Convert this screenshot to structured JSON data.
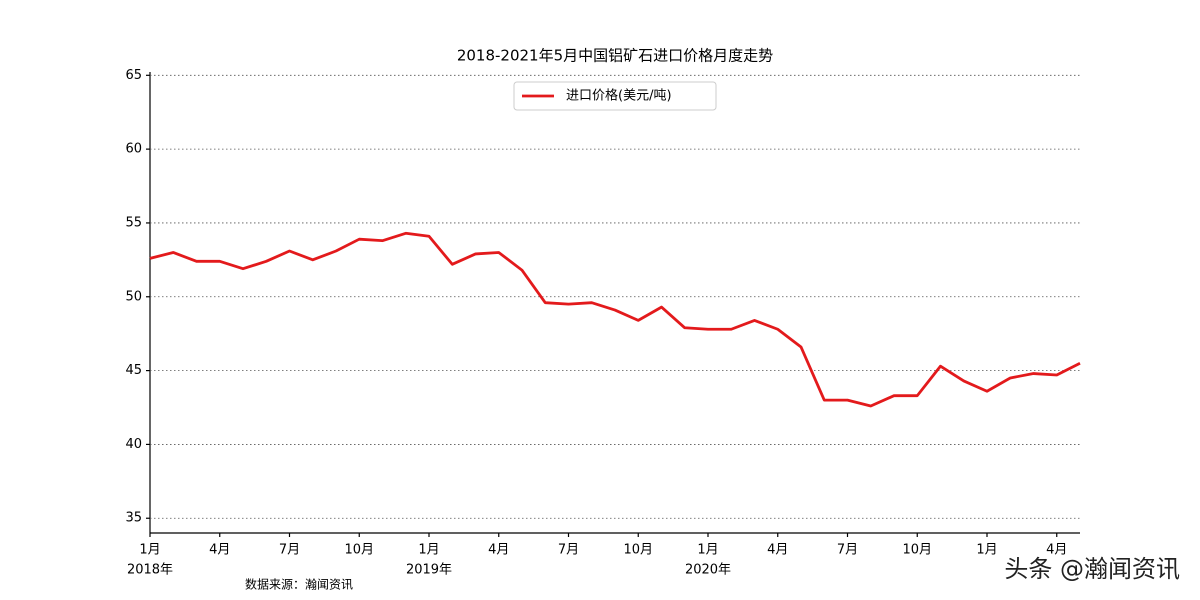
{
  "chart_data": {
    "type": "line",
    "title": "2018-2021年5月中国铝矿石进口价格月度走势",
    "source_note": "数据来源：瀚闻资讯",
    "watermark": "头条 @瀚闻资讯",
    "categories": [
      "1月",
      null,
      null,
      "4月",
      null,
      null,
      "7月",
      null,
      null,
      "10月",
      null,
      null,
      "1月",
      null,
      null,
      "4月",
      null,
      null,
      "7月",
      null,
      null,
      "10月",
      null,
      null,
      "1月",
      null,
      null,
      "4月",
      null,
      null,
      "7月",
      null,
      null,
      "10月",
      null,
      null,
      "1月",
      null,
      null,
      "4月",
      null
    ],
    "year_labels": [
      "2018年",
      null,
      null,
      null,
      null,
      null,
      null,
      null,
      null,
      null,
      null,
      null,
      "2019年",
      null,
      null,
      null,
      null,
      null,
      null,
      null,
      null,
      null,
      null,
      null,
      "2020年",
      null,
      null,
      null,
      null,
      null,
      null,
      null,
      null,
      null,
      null,
      null,
      null,
      null,
      null,
      null,
      null
    ],
    "series": [
      {
        "name": "进口价格(美元/吨)",
        "color": "#e31a1c",
        "values": [
          52.6,
          53.0,
          52.4,
          52.4,
          51.9,
          52.4,
          53.1,
          52.5,
          53.1,
          53.9,
          53.8,
          54.3,
          54.1,
          52.2,
          52.9,
          53.0,
          51.8,
          49.6,
          49.5,
          49.6,
          49.1,
          48.4,
          49.3,
          47.9,
          47.8,
          47.8,
          48.4,
          47.8,
          46.6,
          43.0,
          43.0,
          42.6,
          43.3,
          43.3,
          45.3,
          44.3,
          43.6,
          44.5,
          44.8,
          44.7,
          45.5
        ]
      }
    ],
    "ylim": [
      34,
      65
    ],
    "yticks": [
      35,
      40,
      45,
      50,
      55,
      60,
      65
    ],
    "grid": true,
    "legend": "upper center"
  }
}
